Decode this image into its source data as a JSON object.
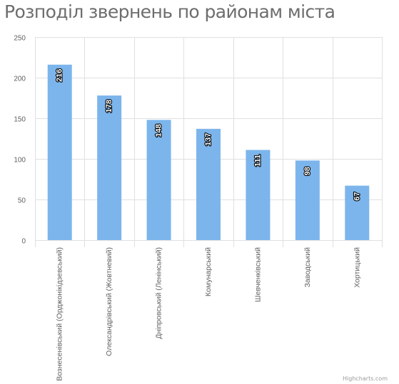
{
  "chart_data": {
    "type": "bar",
    "title": "Розподіл звернень по районам міста",
    "categories": [
      "Вознесенівський (Орджонікідзевський)",
      "Олександрівський (Жовтневий)",
      "Дніпровський (Ленінський)",
      "Комунарський",
      "Шевченківський",
      "Заводський",
      "Хортицький"
    ],
    "values": [
      216,
      178,
      148,
      137,
      111,
      98,
      67
    ],
    "ylim": [
      0,
      250
    ],
    "yticks": [
      0,
      50,
      100,
      150,
      200,
      250
    ],
    "xlabel": "",
    "ylabel": "",
    "grid": true,
    "legend": "none",
    "data_labels": true,
    "bar_color": "#7cb5ec",
    "grid_color": "#e0e0e0",
    "label_color": "#ffffff"
  },
  "credits": "Highcharts.com"
}
